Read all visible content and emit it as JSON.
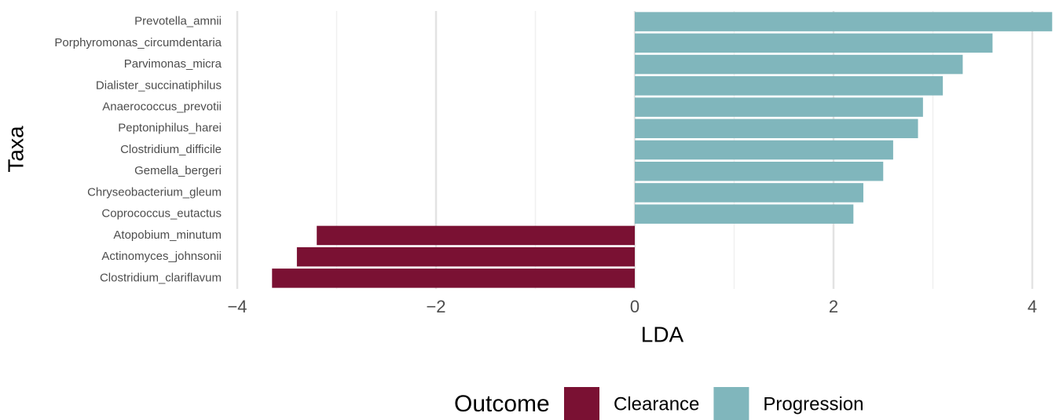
{
  "chart_data": {
    "type": "bar",
    "orientation": "horizontal",
    "x_label": "LDA",
    "y_label": "Taxa",
    "categories": [
      "Prevotella_amnii",
      "Porphyromonas_circumdentaria",
      "Parvimonas_micra",
      "Dialister_succinatiphilus",
      "Anaerococcus_prevotii",
      "Peptoniphilus_harei",
      "Clostridium_difficile",
      "Gemella_bergeri",
      "Chryseobacterium_gleum",
      "Coprococcus_eutactus",
      "Atopobium_minutum",
      "Actinomyces_johnsonii",
      "Clostridium_clariflavum"
    ],
    "series": [
      {
        "name": "Clearance",
        "color": "#7a1133",
        "values": [
          null,
          null,
          null,
          null,
          null,
          null,
          null,
          null,
          null,
          null,
          -3.2,
          -3.4,
          -3.65
        ]
      },
      {
        "name": "Progression",
        "color": "#80b6bc",
        "values": [
          4.2,
          3.6,
          3.3,
          3.1,
          2.9,
          2.85,
          2.6,
          2.5,
          2.3,
          2.2,
          null,
          null,
          null
        ]
      }
    ],
    "legend_title": "Outcome",
    "legend_position": "bottom",
    "xlim": [
      -4.1,
      4.2
    ],
    "xticks": [
      {
        "value": -4,
        "label": "−4"
      },
      {
        "value": -2,
        "label": "−2"
      },
      0,
      2,
      4
    ],
    "minor_xticks": [
      -3,
      -1,
      1,
      3
    ],
    "grid": true
  }
}
